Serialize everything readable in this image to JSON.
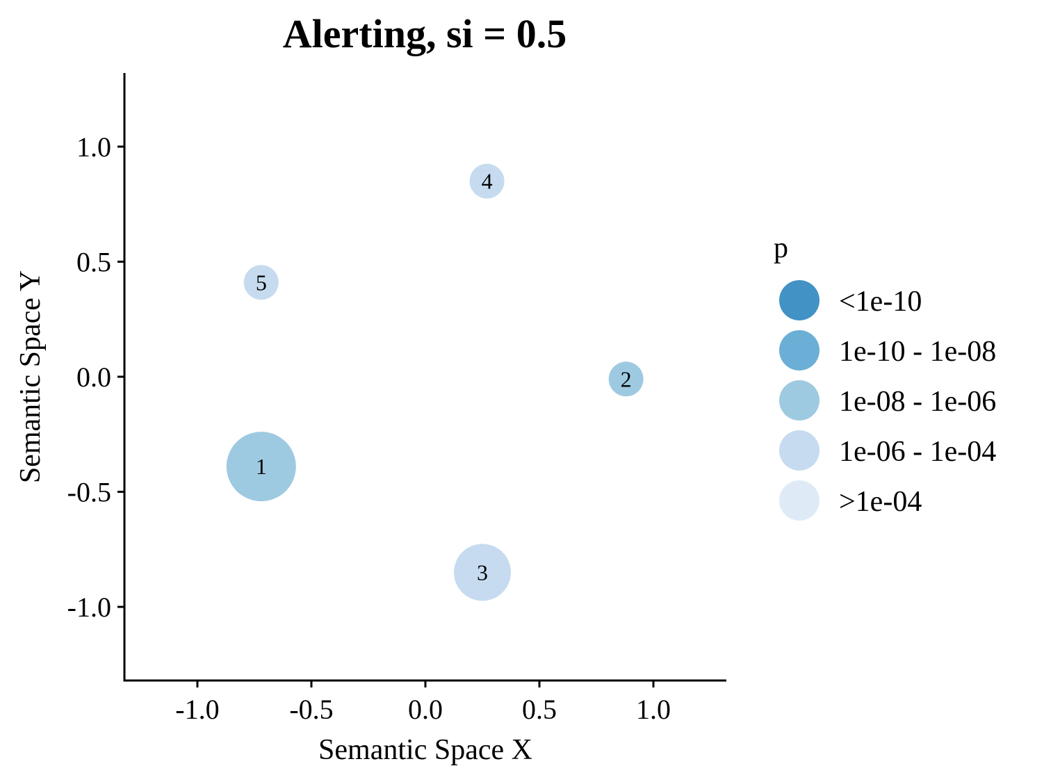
{
  "chart_data": {
    "type": "scatter",
    "title": "Alerting, si = 0.5",
    "xlabel": "Semantic Space X",
    "ylabel": "Semantic Space Y",
    "xlim": [
      -1.32,
      1.32
    ],
    "ylim": [
      -1.32,
      1.32
    ],
    "xticks": [
      -1.0,
      -0.5,
      0.0,
      0.5,
      1.0
    ],
    "xtick_labels": [
      "-1.0",
      "-0.5",
      "0.0",
      "0.5",
      "1.0"
    ],
    "yticks": [
      -1.0,
      -0.5,
      0.0,
      0.5,
      1.0
    ],
    "ytick_labels": [
      "-1.0",
      "-0.5",
      "0.0",
      "0.5",
      "1.0"
    ],
    "grid": false,
    "points": [
      {
        "label": "1",
        "x": -0.72,
        "y": -0.39,
        "size": 1.0,
        "p_category": "1e-08 - 1e-06"
      },
      {
        "label": "2",
        "x": 0.88,
        "y": -0.01,
        "size": 0.5,
        "p_category": "1e-08 - 1e-06"
      },
      {
        "label": "3",
        "x": 0.25,
        "y": -0.85,
        "size": 0.82,
        "p_category": "1e-06 - 1e-04"
      },
      {
        "label": "4",
        "x": 0.27,
        "y": 0.85,
        "size": 0.5,
        "p_category": "1e-06 - 1e-04"
      },
      {
        "label": "5",
        "x": -0.72,
        "y": 0.41,
        "size": 0.5,
        "p_category": "1e-06 - 1e-04"
      }
    ],
    "legend": {
      "title": "p",
      "placement": "right",
      "items": [
        {
          "label": "<1e-10",
          "color": "#4292c6"
        },
        {
          "label": "1e-10 - 1e-08",
          "color": "#6baed6"
        },
        {
          "label": "1e-08 - 1e-06",
          "color": "#9ecae1"
        },
        {
          "label": "1e-06 - 1e-04",
          "color": "#c6dbef"
        },
        {
          "label": ">1e-04",
          "color": "#deebf7"
        }
      ]
    }
  }
}
